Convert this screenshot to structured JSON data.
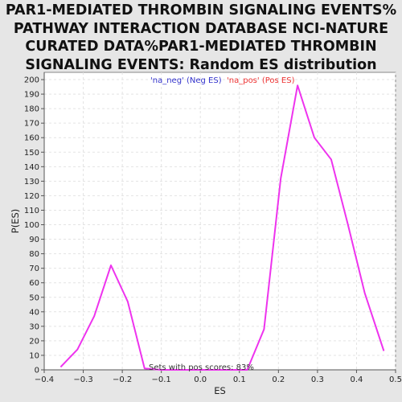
{
  "chart_data": {
    "type": "line",
    "title": "PAR1-MEDIATED THROMBIN SIGNALING EVENTS%\nPATHWAY INTERACTION DATABASE NCI-NATURE\nCURATED DATA%PAR1-MEDIATED THROMBIN\nSIGNALING EVENTS: Random ES distribution",
    "xlabel": "ES",
    "ylabel": "P(ES)",
    "xlim": [
      -0.4,
      0.5
    ],
    "ylim": [
      0,
      205
    ],
    "x_ticks": [
      -0.4,
      -0.3,
      -0.2,
      -0.1,
      0.0,
      0.1,
      0.2,
      0.3,
      0.4,
      0.5
    ],
    "x_tick_labels": [
      "−0.4",
      "−0.3",
      "−0.2",
      "−0.1",
      "0.0",
      "0.1",
      "0.2",
      "0.3",
      "0.4",
      "0.5"
    ],
    "y_ticks": [
      0,
      10,
      20,
      30,
      40,
      50,
      60,
      70,
      80,
      90,
      100,
      110,
      120,
      130,
      140,
      150,
      160,
      170,
      180,
      190,
      200
    ],
    "grid": true,
    "legend": [
      {
        "label": "'na_neg' (Neg ES)",
        "color": "#3333cc"
      },
      {
        "label": "'na_pos' (Pos ES)",
        "color": "#ee3333"
      }
    ],
    "legend_position": "top-center",
    "annotation": "Sets with pos scores: 83%",
    "series": [
      {
        "color": "#ee33ee",
        "x": [
          -0.358,
          -0.315,
          -0.272,
          -0.229,
          -0.186,
          -0.143,
          -0.1,
          0.12,
          0.163,
          0.206,
          0.249,
          0.292,
          0.335,
          0.378,
          0.421,
          0.47
        ],
        "y": [
          2,
          14,
          37,
          72,
          47,
          1,
          0,
          0,
          28,
          132,
          196,
          160,
          145,
          100,
          53,
          13
        ]
      }
    ]
  }
}
